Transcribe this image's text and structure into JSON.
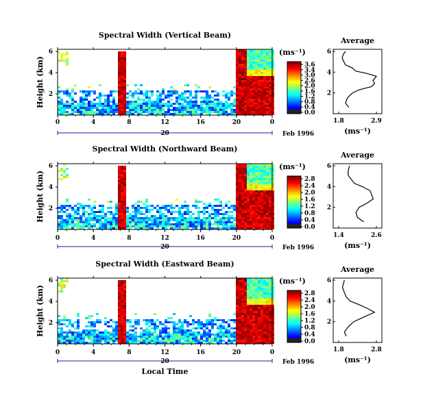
{
  "chart_data": [
    {
      "type": "heatmap",
      "title": "Spectral Width (Vertical Beam)",
      "ylabel": "Height (km)",
      "yticks": [
        "2",
        "4",
        "6"
      ],
      "xticks": [
        "0",
        "4",
        "8",
        "12",
        "16",
        "20",
        "0"
      ],
      "date_label": "20",
      "date_suffix": "Feb 1996",
      "colorbar_unit": "(ms⁻¹)",
      "colorbar_ticks": [
        "3.6",
        "3.4",
        "3.0",
        "2.6",
        "2.0",
        "1.6",
        "1.2",
        "0.8",
        "0.4",
        "0.0"
      ],
      "avg_title": "Average",
      "avg_yticks": [
        "2",
        "4",
        "6"
      ],
      "avg_xticks": [
        "1.8",
        "2.9"
      ],
      "avg_unit": "(ms⁻¹)",
      "avg_profile": [
        [
          0.6,
          2.1
        ],
        [
          1.0,
          2.0
        ],
        [
          1.5,
          2.05
        ],
        [
          2.0,
          2.2
        ],
        [
          2.3,
          2.4
        ],
        [
          2.6,
          2.75
        ],
        [
          2.9,
          2.85
        ],
        [
          3.2,
          2.8
        ],
        [
          3.6,
          2.9
        ],
        [
          3.9,
          2.6
        ],
        [
          4.1,
          2.3
        ],
        [
          4.4,
          2.2
        ],
        [
          4.7,
          2.0
        ],
        [
          5.0,
          1.95
        ],
        [
          5.4,
          1.9
        ],
        [
          5.8,
          1.95
        ],
        [
          6.0,
          2.0
        ]
      ]
    },
    {
      "type": "heatmap",
      "title": "Spectral Width (Northward Beam)",
      "ylabel": "Height (km)",
      "yticks": [
        "2",
        "4",
        "6"
      ],
      "xticks": [
        "0",
        "4",
        "8",
        "12",
        "16",
        "20",
        "0"
      ],
      "date_label": "20",
      "date_suffix": "Feb 1996",
      "colorbar_unit": "(ms⁻¹)",
      "colorbar_ticks": [
        "2.8",
        "2.4",
        "2.0",
        "1.6",
        "1.2",
        "0.8",
        "0.4",
        "0.0"
      ],
      "avg_title": "Average",
      "avg_yticks": [
        "2",
        "4",
        "6"
      ],
      "avg_xticks": [
        "1.4",
        "2.6"
      ],
      "avg_unit": "(ms⁻¹)",
      "avg_profile": [
        [
          0.6,
          2.2
        ],
        [
          1.0,
          2.0
        ],
        [
          1.5,
          1.95
        ],
        [
          2.0,
          2.05
        ],
        [
          2.4,
          2.3
        ],
        [
          2.8,
          2.5
        ],
        [
          3.2,
          2.45
        ],
        [
          3.6,
          2.4
        ],
        [
          4.0,
          2.15
        ],
        [
          4.3,
          1.9
        ],
        [
          4.7,
          1.8
        ],
        [
          5.1,
          1.7
        ],
        [
          5.5,
          1.7
        ],
        [
          6.0,
          1.75
        ]
      ]
    },
    {
      "type": "heatmap",
      "title": "Spectral Width (Eastward Beam)",
      "ylabel": "Height (km)",
      "yticks": [
        "2",
        "4",
        "6"
      ],
      "xticks": [
        "0",
        "4",
        "8",
        "12",
        "16",
        "20",
        "0"
      ],
      "date_label": "20",
      "date_suffix": "Feb 1996",
      "x_axis_label": "Local Time",
      "colorbar_unit": "(ms⁻¹)",
      "colorbar_ticks": [
        "2.8",
        "2.4",
        "2.0",
        "1.6",
        "1.2",
        "0.8",
        "0.4",
        "0.0"
      ],
      "avg_title": "Average",
      "avg_yticks": [
        "2",
        "4",
        "6"
      ],
      "avg_xticks": [
        "1.8",
        "2.8"
      ],
      "avg_unit": "(ms⁻¹)",
      "avg_profile": [
        [
          0.6,
          2.0
        ],
        [
          1.0,
          1.95
        ],
        [
          1.5,
          2.05
        ],
        [
          2.0,
          2.2
        ],
        [
          2.5,
          2.5
        ],
        [
          2.9,
          2.75
        ],
        [
          3.3,
          2.55
        ],
        [
          3.7,
          2.3
        ],
        [
          4.0,
          2.1
        ],
        [
          4.4,
          2.0
        ],
        [
          4.8,
          1.95
        ],
        [
          5.3,
          1.9
        ],
        [
          6.0,
          1.95
        ]
      ]
    }
  ]
}
